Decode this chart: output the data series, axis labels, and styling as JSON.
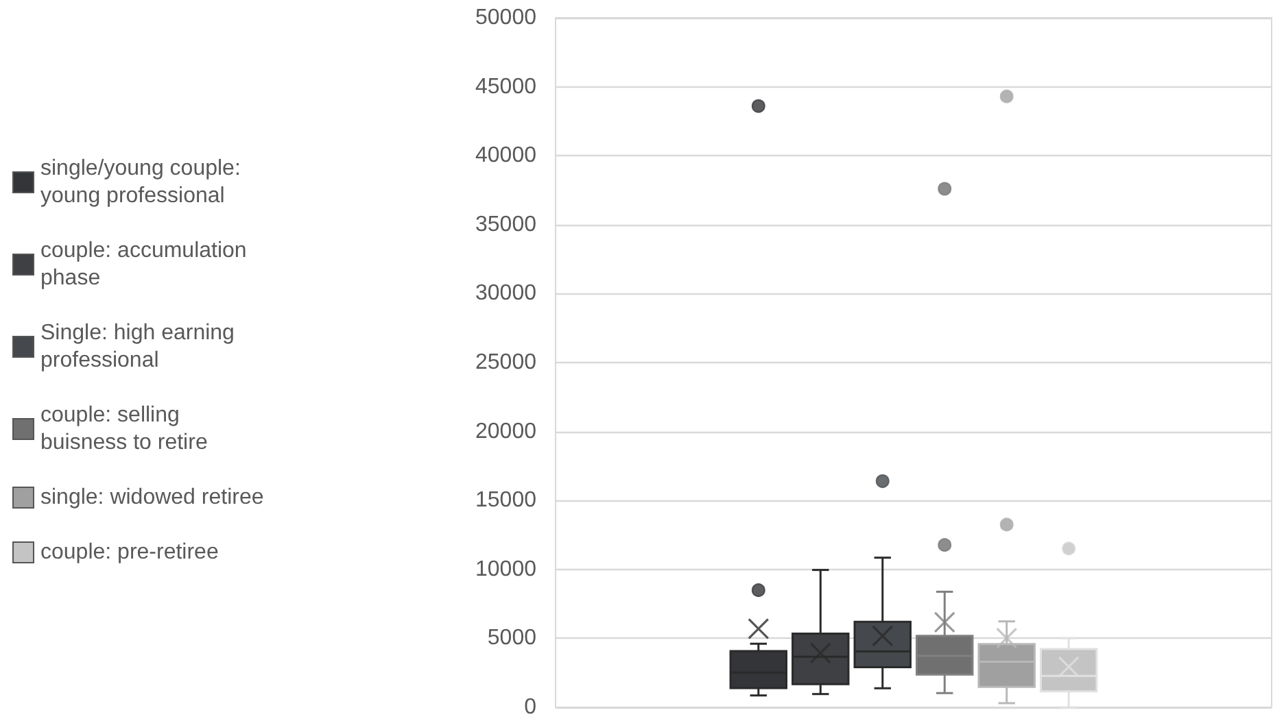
{
  "chart_data": {
    "type": "box",
    "categories": [
      null
    ],
    "series": [
      {
        "name": "single/young couple: young professional",
        "color": "#343538",
        "boxes": [
          {
            "low": 860,
            "q1": 1390,
            "median": 2520,
            "q3": 4080,
            "high": 4610,
            "mean": 5700,
            "outliers": [
              8490,
              43600
            ]
          }
        ]
      },
      {
        "name": "couple: accumulation phase",
        "color": "#3f4043",
        "boxes": [
          {
            "low": 960,
            "q1": 1680,
            "median": 3660,
            "q3": 5340,
            "high": 9960,
            "mean": 3930
          }
        ]
      },
      {
        "name": "Single: high earning professional",
        "color": "#45484c",
        "boxes": [
          {
            "low": 1380,
            "q1": 2910,
            "median": 4050,
            "q3": 6200,
            "high": 10850,
            "mean": 5180,
            "outliers": [
              16400
            ]
          }
        ]
      },
      {
        "name": "couple: selling buisness to retire",
        "color": "#707070",
        "boxes": [
          {
            "low": 1030,
            "q1": 2370,
            "median": 3730,
            "q3": 5180,
            "high": 8380,
            "mean": 6170,
            "outliers": [
              11770,
              37600
            ]
          }
        ]
      },
      {
        "name": "single: widowed retiree",
        "color": "#a0a0a0",
        "boxes": [
          {
            "low": 300,
            "q1": 1480,
            "median": 3300,
            "q3": 4590,
            "high": 6230,
            "mean": 5010,
            "outliers": [
              13250,
              44300
            ]
          }
        ]
      },
      {
        "name": "couple: pre-retiree",
        "color": "#c4c4c4",
        "boxes": [
          {
            "low": 0,
            "q1": 1160,
            "median": 2270,
            "q3": 4220,
            "high": 5010,
            "mean": 2940,
            "outliers": [
              11510
            ]
          }
        ]
      }
    ],
    "ylim": [
      0,
      50000
    ],
    "yticks": [
      0,
      5000,
      10000,
      15000,
      20000,
      25000,
      30000,
      35000,
      40000,
      45000,
      50000
    ],
    "grid": "y",
    "legend": "left",
    "marker": "circle"
  }
}
